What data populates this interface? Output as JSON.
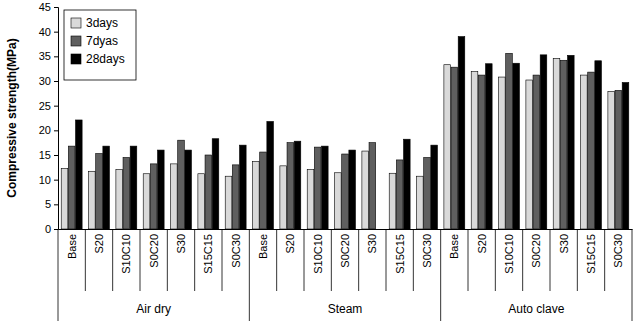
{
  "chart_data": {
    "type": "bar",
    "y_label": "Compressive strength(MPa)",
    "groups": [
      "Air dry",
      "Steam",
      "Auto clave"
    ],
    "categories": [
      "Base",
      "S20",
      "S10C10",
      "S0C20",
      "S30",
      "S15C15",
      "S0C30",
      "Base",
      "S20",
      "S10C10",
      "S0C20",
      "S30",
      "S15C15",
      "S0C30",
      "Base",
      "S20",
      "S10C10",
      "S0C20",
      "S30",
      "S15C15",
      "S0C30"
    ],
    "series": [
      {
        "name": "3days",
        "color": "#d9d9d9",
        "values": [
          12.3,
          11.7,
          12.1,
          11.2,
          13.2,
          11.2,
          10.7,
          13.7,
          12.8,
          12.1,
          11.4,
          15.8,
          11.3,
          10.7,
          33.3,
          31.9,
          30.8,
          30.2,
          34.6,
          31.2,
          27.9
        ]
      },
      {
        "name": "7dyas",
        "color": "#5f5f5f",
        "values": [
          16.8,
          15.3,
          14.5,
          13.2,
          18.0,
          15.0,
          13.0,
          15.6,
          17.5,
          16.6,
          15.2,
          17.5,
          14.0,
          14.5,
          32.8,
          31.2,
          35.6,
          31.2,
          34.2,
          31.8,
          28.1
        ]
      },
      {
        "name": "28days",
        "color": "#000000",
        "values": [
          22.1,
          16.8,
          16.8,
          16.0,
          16.0,
          18.3,
          17.0,
          21.8,
          17.8,
          16.8,
          16.0,
          null,
          18.2,
          17.0,
          39.0,
          33.5,
          33.6,
          35.3,
          35.2,
          34.1,
          29.7
        ]
      }
    ],
    "ylim": [
      0,
      45
    ],
    "yticks": [
      0,
      5,
      10,
      15,
      20,
      25,
      30,
      35,
      40,
      45
    ],
    "grid": false,
    "legend": "upper left"
  }
}
